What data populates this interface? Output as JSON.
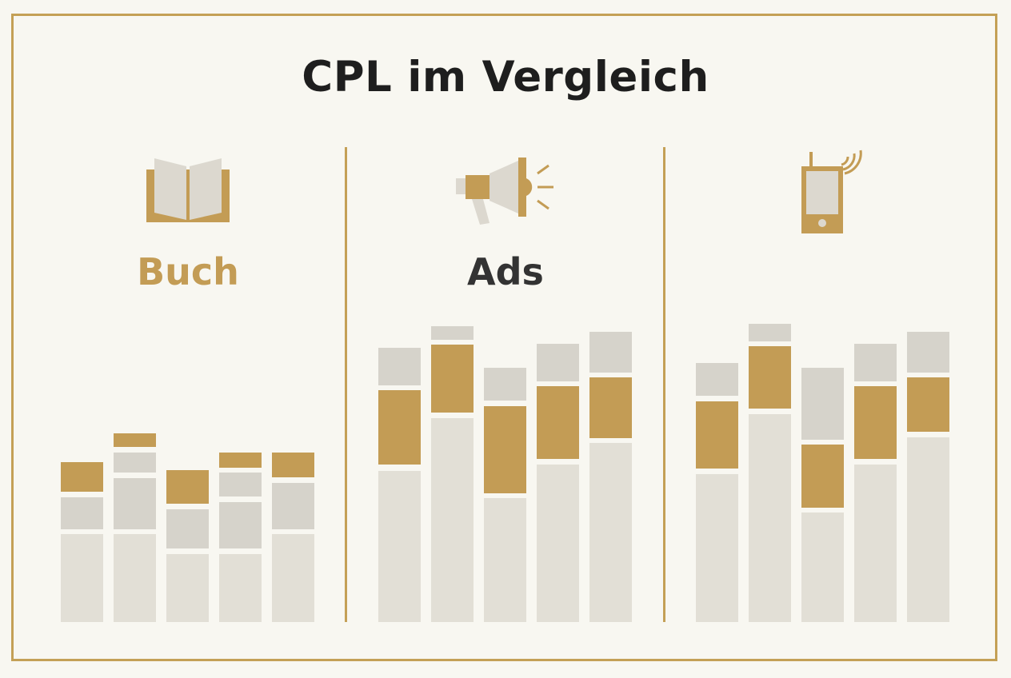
{
  "title": "CPL im Vergleich",
  "colors": {
    "background": "#f8f7f1",
    "border": "#c4a056",
    "gold": "#c39c55",
    "gray_light": "#e2dfd6",
    "gray_mid": "#d6d3cb",
    "title": "#1e1e1e",
    "label_dark": "#333333"
  },
  "panels": [
    {
      "label": "Buch",
      "label_color": "#c39c55",
      "icon": "open-book-icon"
    },
    {
      "label": "Ads",
      "label_color": "#333333",
      "icon": "megaphone-icon"
    },
    {
      "label": "",
      "label_color": "#333333",
      "icon": "mobile-phone-icon"
    }
  ],
  "chart_data": [
    {
      "type": "bar",
      "stacked": true,
      "panel": "Buch",
      "segment_colors": [
        "gray_light",
        "gray_mid",
        "gold"
      ],
      "bars": [
        [
          [
            0,
            110,
            "gray_light"
          ],
          [
            116,
            156,
            "gray_mid"
          ],
          [
            163,
            200,
            "gold"
          ]
        ],
        [
          [
            0,
            110,
            "gray_light"
          ],
          [
            116,
            180,
            "gray_mid"
          ],
          [
            187,
            212,
            "gray_mid"
          ],
          [
            219,
            236,
            "gold"
          ]
        ],
        [
          [
            0,
            85,
            "gray_light"
          ],
          [
            92,
            141,
            "gray_mid"
          ],
          [
            148,
            190,
            "gold"
          ]
        ],
        [
          [
            0,
            85,
            "gray_light"
          ],
          [
            92,
            150,
            "gray_mid"
          ],
          [
            157,
            187,
            "gray_mid"
          ],
          [
            193,
            212,
            "gold"
          ]
        ],
        [
          [
            0,
            110,
            "gray_light"
          ],
          [
            116,
            174,
            "gray_mid"
          ],
          [
            181,
            212,
            "gold"
          ]
        ]
      ],
      "ylim": [
        0,
        380
      ]
    },
    {
      "type": "bar",
      "stacked": true,
      "panel": "Ads",
      "segment_colors": [
        "gray_light",
        "gold",
        "gray_mid"
      ],
      "bars": [
        [
          [
            0,
            189,
            "gray_light"
          ],
          [
            197,
            290,
            "gold"
          ],
          [
            296,
            343,
            "gray_mid"
          ]
        ],
        [
          [
            0,
            255,
            "gray_light"
          ],
          [
            262,
            347,
            "gold"
          ],
          [
            353,
            370,
            "gray_mid"
          ]
        ],
        [
          [
            0,
            155,
            "gray_light"
          ],
          [
            161,
            270,
            "gold"
          ],
          [
            277,
            318,
            "gray_mid"
          ]
        ],
        [
          [
            0,
            197,
            "gray_light"
          ],
          [
            204,
            295,
            "gold"
          ],
          [
            301,
            348,
            "gray_mid"
          ]
        ],
        [
          [
            0,
            224,
            "gray_light"
          ],
          [
            230,
            306,
            "gold"
          ],
          [
            312,
            363,
            "gray_mid"
          ]
        ]
      ],
      "ylim": [
        0,
        380
      ]
    },
    {
      "type": "bar",
      "stacked": true,
      "panel": "",
      "segment_colors": [
        "gray_light",
        "gold",
        "gray_mid"
      ],
      "bars": [
        [
          [
            0,
            185,
            "gray_light"
          ],
          [
            192,
            276,
            "gold"
          ],
          [
            283,
            324,
            "gray_mid"
          ]
        ],
        [
          [
            0,
            260,
            "gray_light"
          ],
          [
            267,
            345,
            "gold"
          ],
          [
            351,
            373,
            "gray_mid"
          ]
        ],
        [
          [
            0,
            137,
            "gray_light"
          ],
          [
            143,
            222,
            "gold"
          ],
          [
            228,
            318,
            "gray_mid"
          ]
        ],
        [
          [
            0,
            197,
            "gray_light"
          ],
          [
            204,
            295,
            "gold"
          ],
          [
            301,
            348,
            "gray_mid"
          ]
        ],
        [
          [
            0,
            231,
            "gray_light"
          ],
          [
            238,
            306,
            "gold"
          ],
          [
            312,
            363,
            "gray_mid"
          ]
        ]
      ],
      "ylim": [
        0,
        380
      ]
    }
  ]
}
